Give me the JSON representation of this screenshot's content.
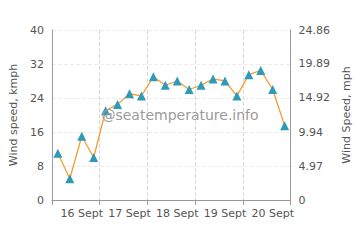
{
  "chart_data": {
    "type": "line",
    "y_label": "Wind speed, kmph",
    "y2_label": "Wind Speed, mph",
    "annotations": [
      "@seatemperature.info"
    ],
    "categories": [
      null,
      null,
      "16 Sept",
      null,
      null,
      null,
      "17 Sept",
      null,
      null,
      null,
      "18 Sept",
      null,
      null,
      null,
      "19 Sept",
      null,
      null,
      null,
      "20 Sept",
      null
    ],
    "series": [
      {
        "name": "Wind speed",
        "color": "#f39c33",
        "marker": "triangle",
        "values": [
          11,
          5,
          15,
          10,
          21,
          22.5,
          25,
          24.5,
          29,
          27,
          28,
          26,
          27,
          28.5,
          28,
          24.5,
          29.5,
          30.5,
          26,
          17.5
        ]
      }
    ],
    "ylim": [
      0,
      40
    ],
    "yticks": [
      0,
      8,
      16,
      24,
      32,
      40
    ],
    "y2lim": [
      0,
      24.86
    ],
    "y2ticks": [
      0,
      4.97,
      9.94,
      14.92,
      19.89,
      24.86
    ],
    "grid": true
  }
}
